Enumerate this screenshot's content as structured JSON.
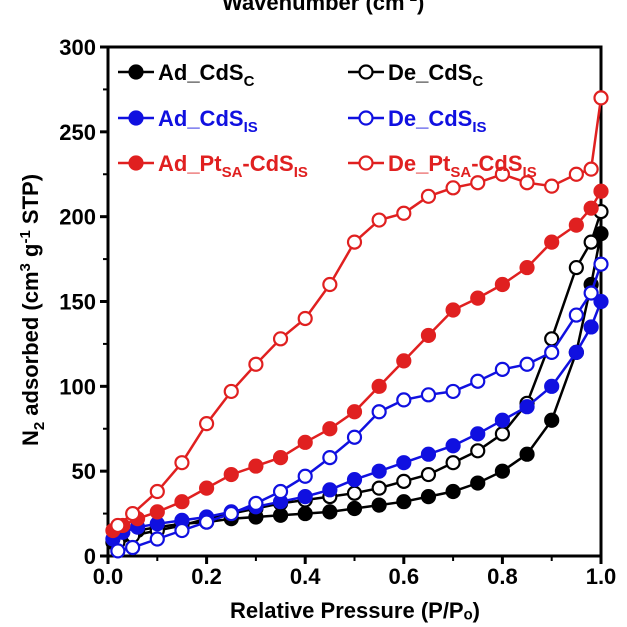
{
  "chart_data": {
    "type": "scatter",
    "top_cut_text": "Wavenumber (cm",
    "top_cut_sup": "-1",
    "top_cut_close": ")",
    "xlabel": "Relative Pressure (P/Pₒ)",
    "ylabel": {
      "n": "N",
      "n_sub": "2",
      "rest1": " adsorbed (cm",
      "sup3": "3",
      "g": " g",
      "sup_m1": "-1",
      "rest2": " STP)"
    },
    "xlim": [
      0,
      1.0
    ],
    "ylim": [
      0,
      300
    ],
    "xticks": [
      "0.0",
      "0.2",
      "0.4",
      "0.6",
      "0.8",
      "1.0"
    ],
    "yticks": [
      "0",
      "50",
      "100",
      "150",
      "200",
      "250",
      "300"
    ],
    "legend_position": "top-left, two columns",
    "series": [
      {
        "name": "Ad_CdSC",
        "name_main": "Ad_CdS",
        "name_sub": "C",
        "name_tail": "",
        "color": "#000000",
        "filled": true,
        "x": [
          0.01,
          0.03,
          0.06,
          0.1,
          0.15,
          0.2,
          0.25,
          0.3,
          0.35,
          0.4,
          0.45,
          0.5,
          0.55,
          0.6,
          0.65,
          0.7,
          0.75,
          0.8,
          0.85,
          0.9,
          0.95,
          0.98,
          1.0
        ],
        "y": [
          8,
          12,
          15,
          17,
          19,
          20,
          22,
          23,
          24,
          25,
          26,
          28,
          30,
          32,
          35,
          38,
          43,
          50,
          60,
          80,
          120,
          160,
          190
        ]
      },
      {
        "name": "De_CdSC",
        "name_main": "De_CdS",
        "name_sub": "C",
        "name_tail": "",
        "color": "#000000",
        "filled": false,
        "x": [
          1.0,
          0.98,
          0.95,
          0.9,
          0.85,
          0.8,
          0.75,
          0.7,
          0.65,
          0.6,
          0.55,
          0.5,
          0.45,
          0.4,
          0.35,
          0.3,
          0.25,
          0.2,
          0.15,
          0.1,
          0.05,
          0.02
        ],
        "y": [
          203,
          185,
          170,
          128,
          90,
          72,
          62,
          55,
          48,
          44,
          40,
          37,
          35,
          33,
          31,
          28,
          25,
          22,
          18,
          15,
          12,
          8
        ]
      },
      {
        "name": "Ad_CdSIS",
        "name_main": "Ad_CdS",
        "name_sub": "IS",
        "name_tail": "",
        "color": "#1010e0",
        "filled": true,
        "x": [
          0.01,
          0.03,
          0.06,
          0.1,
          0.15,
          0.2,
          0.25,
          0.3,
          0.35,
          0.4,
          0.45,
          0.5,
          0.55,
          0.6,
          0.65,
          0.7,
          0.75,
          0.8,
          0.85,
          0.9,
          0.95,
          0.98,
          1.0
        ],
        "y": [
          10,
          14,
          17,
          19,
          21,
          23,
          26,
          29,
          32,
          35,
          39,
          45,
          50,
          55,
          60,
          65,
          72,
          80,
          88,
          100,
          120,
          135,
          150
        ]
      },
      {
        "name": "De_CdSIS",
        "name_main": "De_CdS",
        "name_sub": "IS",
        "name_tail": "",
        "color": "#1010e0",
        "filled": false,
        "x": [
          1.0,
          0.98,
          0.95,
          0.9,
          0.85,
          0.8,
          0.75,
          0.7,
          0.65,
          0.6,
          0.55,
          0.5,
          0.45,
          0.4,
          0.35,
          0.3,
          0.25,
          0.2,
          0.15,
          0.1,
          0.05,
          0.02
        ],
        "y": [
          172,
          155,
          142,
          120,
          113,
          110,
          103,
          97,
          95,
          92,
          85,
          70,
          58,
          47,
          38,
          31,
          25,
          20,
          15,
          10,
          5,
          3
        ]
      },
      {
        "name": "Ad_PtSA-CdSIS",
        "name_main": "Ad_Pt",
        "name_sub": "SA",
        "name_tail": "-CdS",
        "name_sub2": "IS",
        "color": "#e02020",
        "filled": true,
        "x": [
          0.01,
          0.03,
          0.06,
          0.1,
          0.15,
          0.2,
          0.25,
          0.3,
          0.35,
          0.4,
          0.45,
          0.5,
          0.55,
          0.6,
          0.65,
          0.7,
          0.75,
          0.8,
          0.85,
          0.9,
          0.95,
          0.98,
          1.0
        ],
        "y": [
          15,
          18,
          22,
          26,
          32,
          40,
          48,
          53,
          58,
          67,
          75,
          85,
          100,
          115,
          130,
          145,
          152,
          160,
          170,
          185,
          195,
          205,
          215
        ]
      },
      {
        "name": "De_PtSA-CdSIS",
        "name_main": "De_Pt",
        "name_sub": "SA",
        "name_tail": "-CdS",
        "name_sub2": "IS",
        "color": "#e02020",
        "filled": false,
        "x": [
          1.0,
          0.98,
          0.95,
          0.9,
          0.85,
          0.8,
          0.75,
          0.7,
          0.65,
          0.6,
          0.55,
          0.5,
          0.45,
          0.4,
          0.35,
          0.3,
          0.25,
          0.2,
          0.15,
          0.1,
          0.05,
          0.02
        ],
        "y": [
          270,
          228,
          225,
          218,
          220,
          225,
          220,
          217,
          212,
          202,
          198,
          185,
          160,
          140,
          128,
          113,
          97,
          78,
          55,
          38,
          25,
          18
        ]
      }
    ]
  }
}
